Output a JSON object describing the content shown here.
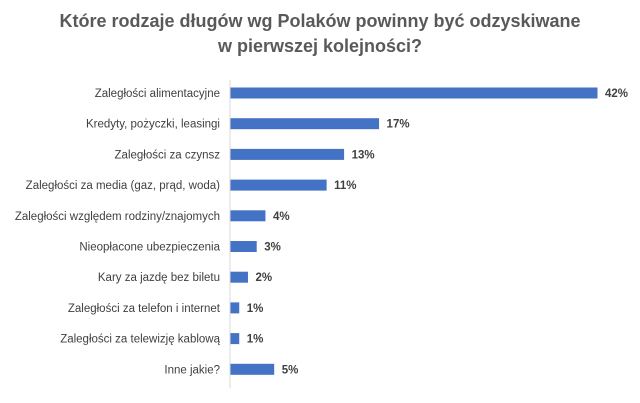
{
  "chart_data": {
    "type": "bar",
    "orientation": "horizontal",
    "title": "Które rodzaje długów wg Polaków powinny być odzyskiwane w pierwszej kolejności?",
    "title_lines": [
      "Które rodzaje długów wg Polaków powinny być odzyskiwane",
      "w pierwszej kolejności?"
    ],
    "categories": [
      "Zaległości alimentacyjne",
      "Kredyty, pożyczki, leasingi",
      "Zaległości za czynsz",
      "Zaległości za media (gaz, prąd, woda)",
      "Zaległości względem rodziny/znajomych",
      "Nieopłacone ubezpieczenia",
      "Kary za jazdę bez biletu",
      "Zaległości za telefon i internet",
      "Zaległości za telewizję kablową",
      "Inne jakie?"
    ],
    "values": [
      42,
      17,
      13,
      11,
      4,
      3,
      2,
      1,
      1,
      5
    ],
    "value_labels": [
      "42%",
      "17%",
      "13%",
      "11%",
      "4%",
      "3%",
      "2%",
      "1%",
      "1%",
      "5%"
    ],
    "unit": "%",
    "xlim": [
      0,
      42
    ],
    "grid": false,
    "legend": "none",
    "bar_color": "#4472c4"
  }
}
